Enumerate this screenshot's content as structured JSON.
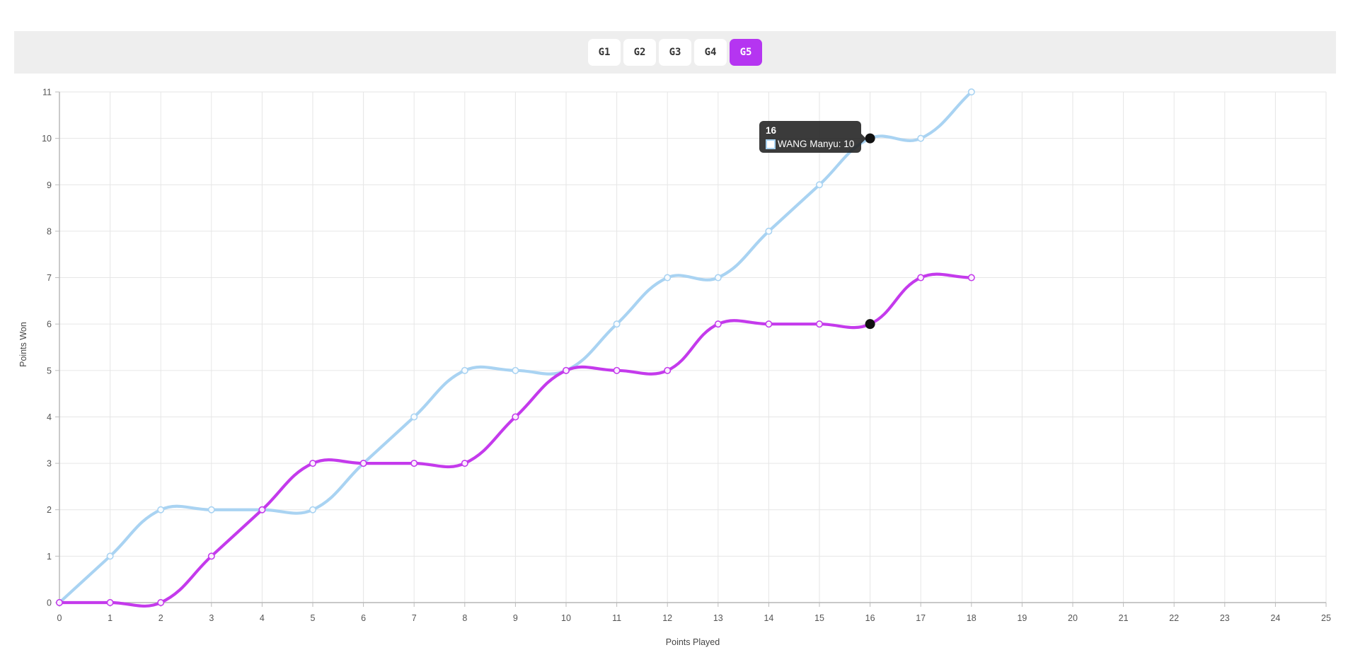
{
  "toolbar": {
    "active_color": "#b535f1",
    "buttons": [
      {
        "label": "G1",
        "active": false
      },
      {
        "label": "G2",
        "active": false
      },
      {
        "label": "G3",
        "active": false
      },
      {
        "label": "G4",
        "active": false
      },
      {
        "label": "G5",
        "active": true
      }
    ]
  },
  "chart_data": {
    "type": "line",
    "x": [
      0,
      1,
      2,
      3,
      4,
      5,
      6,
      7,
      8,
      9,
      10,
      11,
      12,
      13,
      14,
      15,
      16,
      17,
      18
    ],
    "series": [
      {
        "name": "WANG Manyu",
        "color": "#a9d3f2",
        "values": [
          0,
          1,
          2,
          2,
          2,
          2,
          3,
          4,
          5,
          5,
          5,
          6,
          7,
          7,
          8,
          9,
          10,
          10,
          11
        ]
      },
      {
        "name": "",
        "color": "#c43aec",
        "values": [
          0,
          0,
          0,
          1,
          2,
          3,
          3,
          3,
          3,
          4,
          5,
          5,
          5,
          6,
          6,
          6,
          6,
          7,
          7
        ]
      }
    ],
    "xlabel": "Points Played",
    "ylabel": "Points Won",
    "xlim": [
      0,
      25
    ],
    "ylim": [
      0,
      11
    ],
    "x_ticks": [
      0,
      1,
      2,
      3,
      4,
      5,
      6,
      7,
      8,
      9,
      10,
      11,
      12,
      13,
      14,
      15,
      16,
      17,
      18,
      19,
      20,
      21,
      22,
      23,
      24,
      25
    ],
    "y_ticks": [
      0,
      1,
      2,
      3,
      4,
      5,
      6,
      7,
      8,
      9,
      10,
      11
    ],
    "grid": true,
    "legend": "none",
    "hover": {
      "x": 16,
      "points": [
        {
          "series": 0,
          "value": 10
        },
        {
          "series": 1,
          "value": 6
        }
      ]
    }
  },
  "tooltip": {
    "title": "16",
    "label": "WANG Manyu: 10",
    "swatch_color": "#a9d3f2"
  },
  "colors": {
    "toolbar_bg": "#eeeeee",
    "grid_line": "#e6e6e6",
    "axis_line": "#a8a8a8",
    "tick_text": "#555555",
    "hover_dot": "#111111"
  }
}
